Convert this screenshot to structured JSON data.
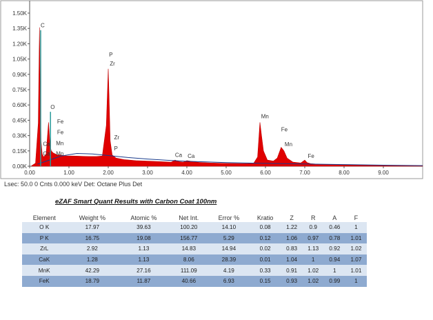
{
  "chart_data": {
    "type": "line",
    "xlim": [
      0,
      10
    ],
    "ylim": [
      0,
      1500
    ],
    "xticks": [
      "0.00",
      "1.00",
      "2.00",
      "3.00",
      "4.00",
      "5.00",
      "6.00",
      "7.00",
      "8.00",
      "9.00"
    ],
    "yticks": [
      "0.00K",
      "0.15K",
      "0.30K",
      "0.45K",
      "0.60K",
      "0.75K",
      "0.90K",
      "1.05K",
      "1.20K",
      "1.35K",
      "1.50K"
    ],
    "grid": false,
    "background_color": "#ffffff",
    "spectrum_fill": "#e00000",
    "trace_color": "#1a3a8a",
    "peak_marker_color": "#2a9a9a",
    "spectrum": {
      "x": [
        0.05,
        0.15,
        0.22,
        0.25,
        0.27,
        0.29,
        0.32,
        0.36,
        0.42,
        0.48,
        0.52,
        0.55,
        0.6,
        0.65,
        0.7,
        0.78,
        0.86,
        0.95,
        1.1,
        1.3,
        1.5,
        1.7,
        1.85,
        1.95,
        2.0,
        2.02,
        2.05,
        2.1,
        2.2,
        2.4,
        2.7,
        3.0,
        3.3,
        3.6,
        3.7,
        3.8,
        3.9,
        4.0,
        4.3,
        4.6,
        5.0,
        5.5,
        5.7,
        5.8,
        5.86,
        5.9,
        5.95,
        6.05,
        6.2,
        6.3,
        6.4,
        6.47,
        6.55,
        6.7,
        6.9,
        7.0,
        7.06,
        7.15,
        7.4,
        8.0,
        9.0,
        10.0
      ],
      "y": [
        5,
        30,
        420,
        1360,
        700,
        250,
        120,
        90,
        120,
        430,
        200,
        150,
        130,
        120,
        110,
        110,
        105,
        100,
        100,
        98,
        95,
        95,
        100,
        400,
        955,
        700,
        250,
        110,
        80,
        65,
        55,
        50,
        45,
        40,
        60,
        45,
        40,
        55,
        38,
        32,
        28,
        26,
        30,
        90,
        430,
        300,
        150,
        60,
        50,
        80,
        185,
        150,
        80,
        40,
        32,
        60,
        35,
        25,
        18,
        12,
        8,
        5
      ]
    },
    "background_trace": {
      "x": [
        0.2,
        0.5,
        0.8,
        1.2,
        1.6,
        2.0,
        2.5,
        3.0,
        3.5,
        4.0,
        4.5,
        5.0,
        6.0,
        7.0,
        8.0,
        9.0,
        10.0
      ],
      "y": [
        20,
        60,
        100,
        125,
        120,
        105,
        85,
        70,
        58,
        48,
        42,
        35,
        28,
        22,
        16,
        10,
        6
      ]
    },
    "peaks": [
      {
        "label": "C",
        "x": 0.28,
        "y": 1360,
        "marker": "#2a9a9a"
      },
      {
        "label": "O",
        "x": 0.53,
        "y": 560,
        "marker": "#2a9a9a"
      },
      {
        "label": "Fe",
        "x": 0.7,
        "y": 420,
        "marker": ""
      },
      {
        "label": "Fe",
        "x": 0.7,
        "y": 315,
        "marker": ""
      },
      {
        "label": "Mn",
        "x": 0.67,
        "y": 205,
        "marker": ""
      },
      {
        "label": "Mn",
        "x": 0.67,
        "y": 105,
        "marker": ""
      },
      {
        "label": "Ca",
        "x": 0.34,
        "y": 200,
        "marker": ""
      },
      {
        "label": "Ca",
        "x": 0.34,
        "y": 105,
        "marker": ""
      },
      {
        "label": "P",
        "x": 2.02,
        "y": 1075,
        "marker": ""
      },
      {
        "label": "Zr",
        "x": 2.04,
        "y": 985,
        "marker": ""
      },
      {
        "label": "Zr",
        "x": 2.15,
        "y": 265,
        "marker": ""
      },
      {
        "label": "P",
        "x": 2.15,
        "y": 155,
        "marker": ""
      },
      {
        "label": "Ca",
        "x": 3.7,
        "y": 90,
        "marker": ""
      },
      {
        "label": "Ca",
        "x": 4.02,
        "y": 80,
        "marker": ""
      },
      {
        "label": "Mn",
        "x": 5.89,
        "y": 470,
        "marker": ""
      },
      {
        "label": "Fe",
        "x": 6.4,
        "y": 340,
        "marker": ""
      },
      {
        "label": "Mn",
        "x": 6.49,
        "y": 195,
        "marker": ""
      },
      {
        "label": "Fe",
        "x": 7.08,
        "y": 80,
        "marker": ""
      }
    ]
  },
  "status_line": "Lsec: 50.0 0 Cnts  0.000 keV Det: Octane Plus Det",
  "results": {
    "title": "eZAF Smart Quant Results with Carbon Coat 100nm",
    "columns": [
      "Element",
      "Weight %",
      "Atomic %",
      "Net Int.",
      "Error %",
      "Kratio",
      "Z",
      "R",
      "A",
      "F"
    ],
    "rows": [
      [
        "O K",
        "17.97",
        "39.63",
        "100.20",
        "14.10",
        "0.08",
        "1.22",
        "0.9",
        "0.46",
        "1"
      ],
      [
        "P K",
        "16.75",
        "19.08",
        "156.77",
        "5.29",
        "0.12",
        "1.06",
        "0.97",
        "0.78",
        "1.01"
      ],
      [
        "ZrL",
        "2.92",
        "1.13",
        "14.83",
        "14.94",
        "0.02",
        "0.83",
        "1.13",
        "0.92",
        "1.02"
      ],
      [
        "CaK",
        "1.28",
        "1.13",
        "8.06",
        "28.39",
        "0.01",
        "1.04",
        "1",
        "0.94",
        "1.07"
      ],
      [
        "MnK",
        "42.29",
        "27.16",
        "111.09",
        "4.19",
        "0.33",
        "0.91",
        "1.02",
        "1",
        "1.01"
      ],
      [
        "FeK",
        "18.79",
        "11.87",
        "40.66",
        "6.93",
        "0.15",
        "0.93",
        "1.02",
        "0.99",
        "1"
      ]
    ]
  }
}
